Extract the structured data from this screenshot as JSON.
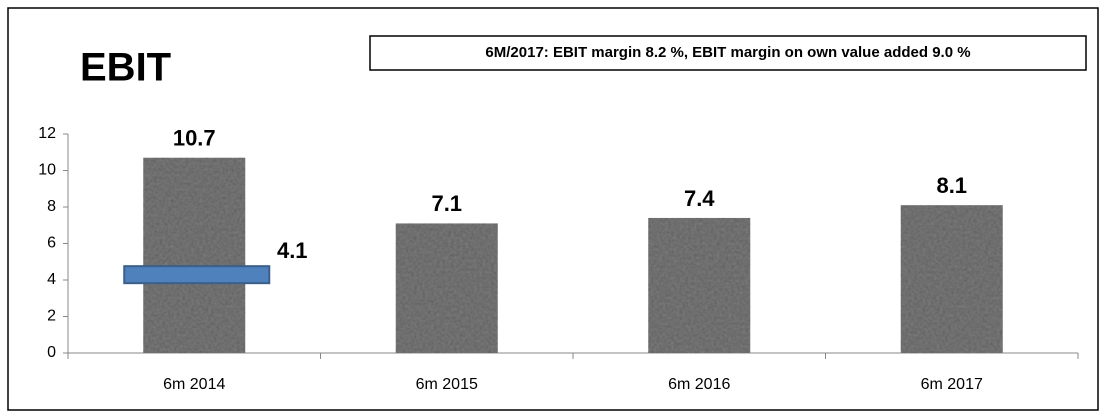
{
  "chart_data": {
    "type": "bar",
    "title": "EBIT",
    "annotation": "6M/2017: EBIT margin  8.2 %, EBIT margin on own value added 9.0 %",
    "categories": [
      "6m 2014",
      "6m 2015",
      "6m 2016",
      "6m 2017"
    ],
    "series": [
      {
        "color": "#808080",
        "values": [
          10.7,
          7.1,
          7.4,
          8.1
        ]
      },
      {
        "color": "#4f81bd",
        "values": [
          4.1,
          null,
          null,
          null
        ]
      }
    ],
    "ylim": [
      0,
      12
    ],
    "yticks": [
      0,
      2,
      4,
      6,
      8,
      10,
      12
    ],
    "grid": false
  }
}
